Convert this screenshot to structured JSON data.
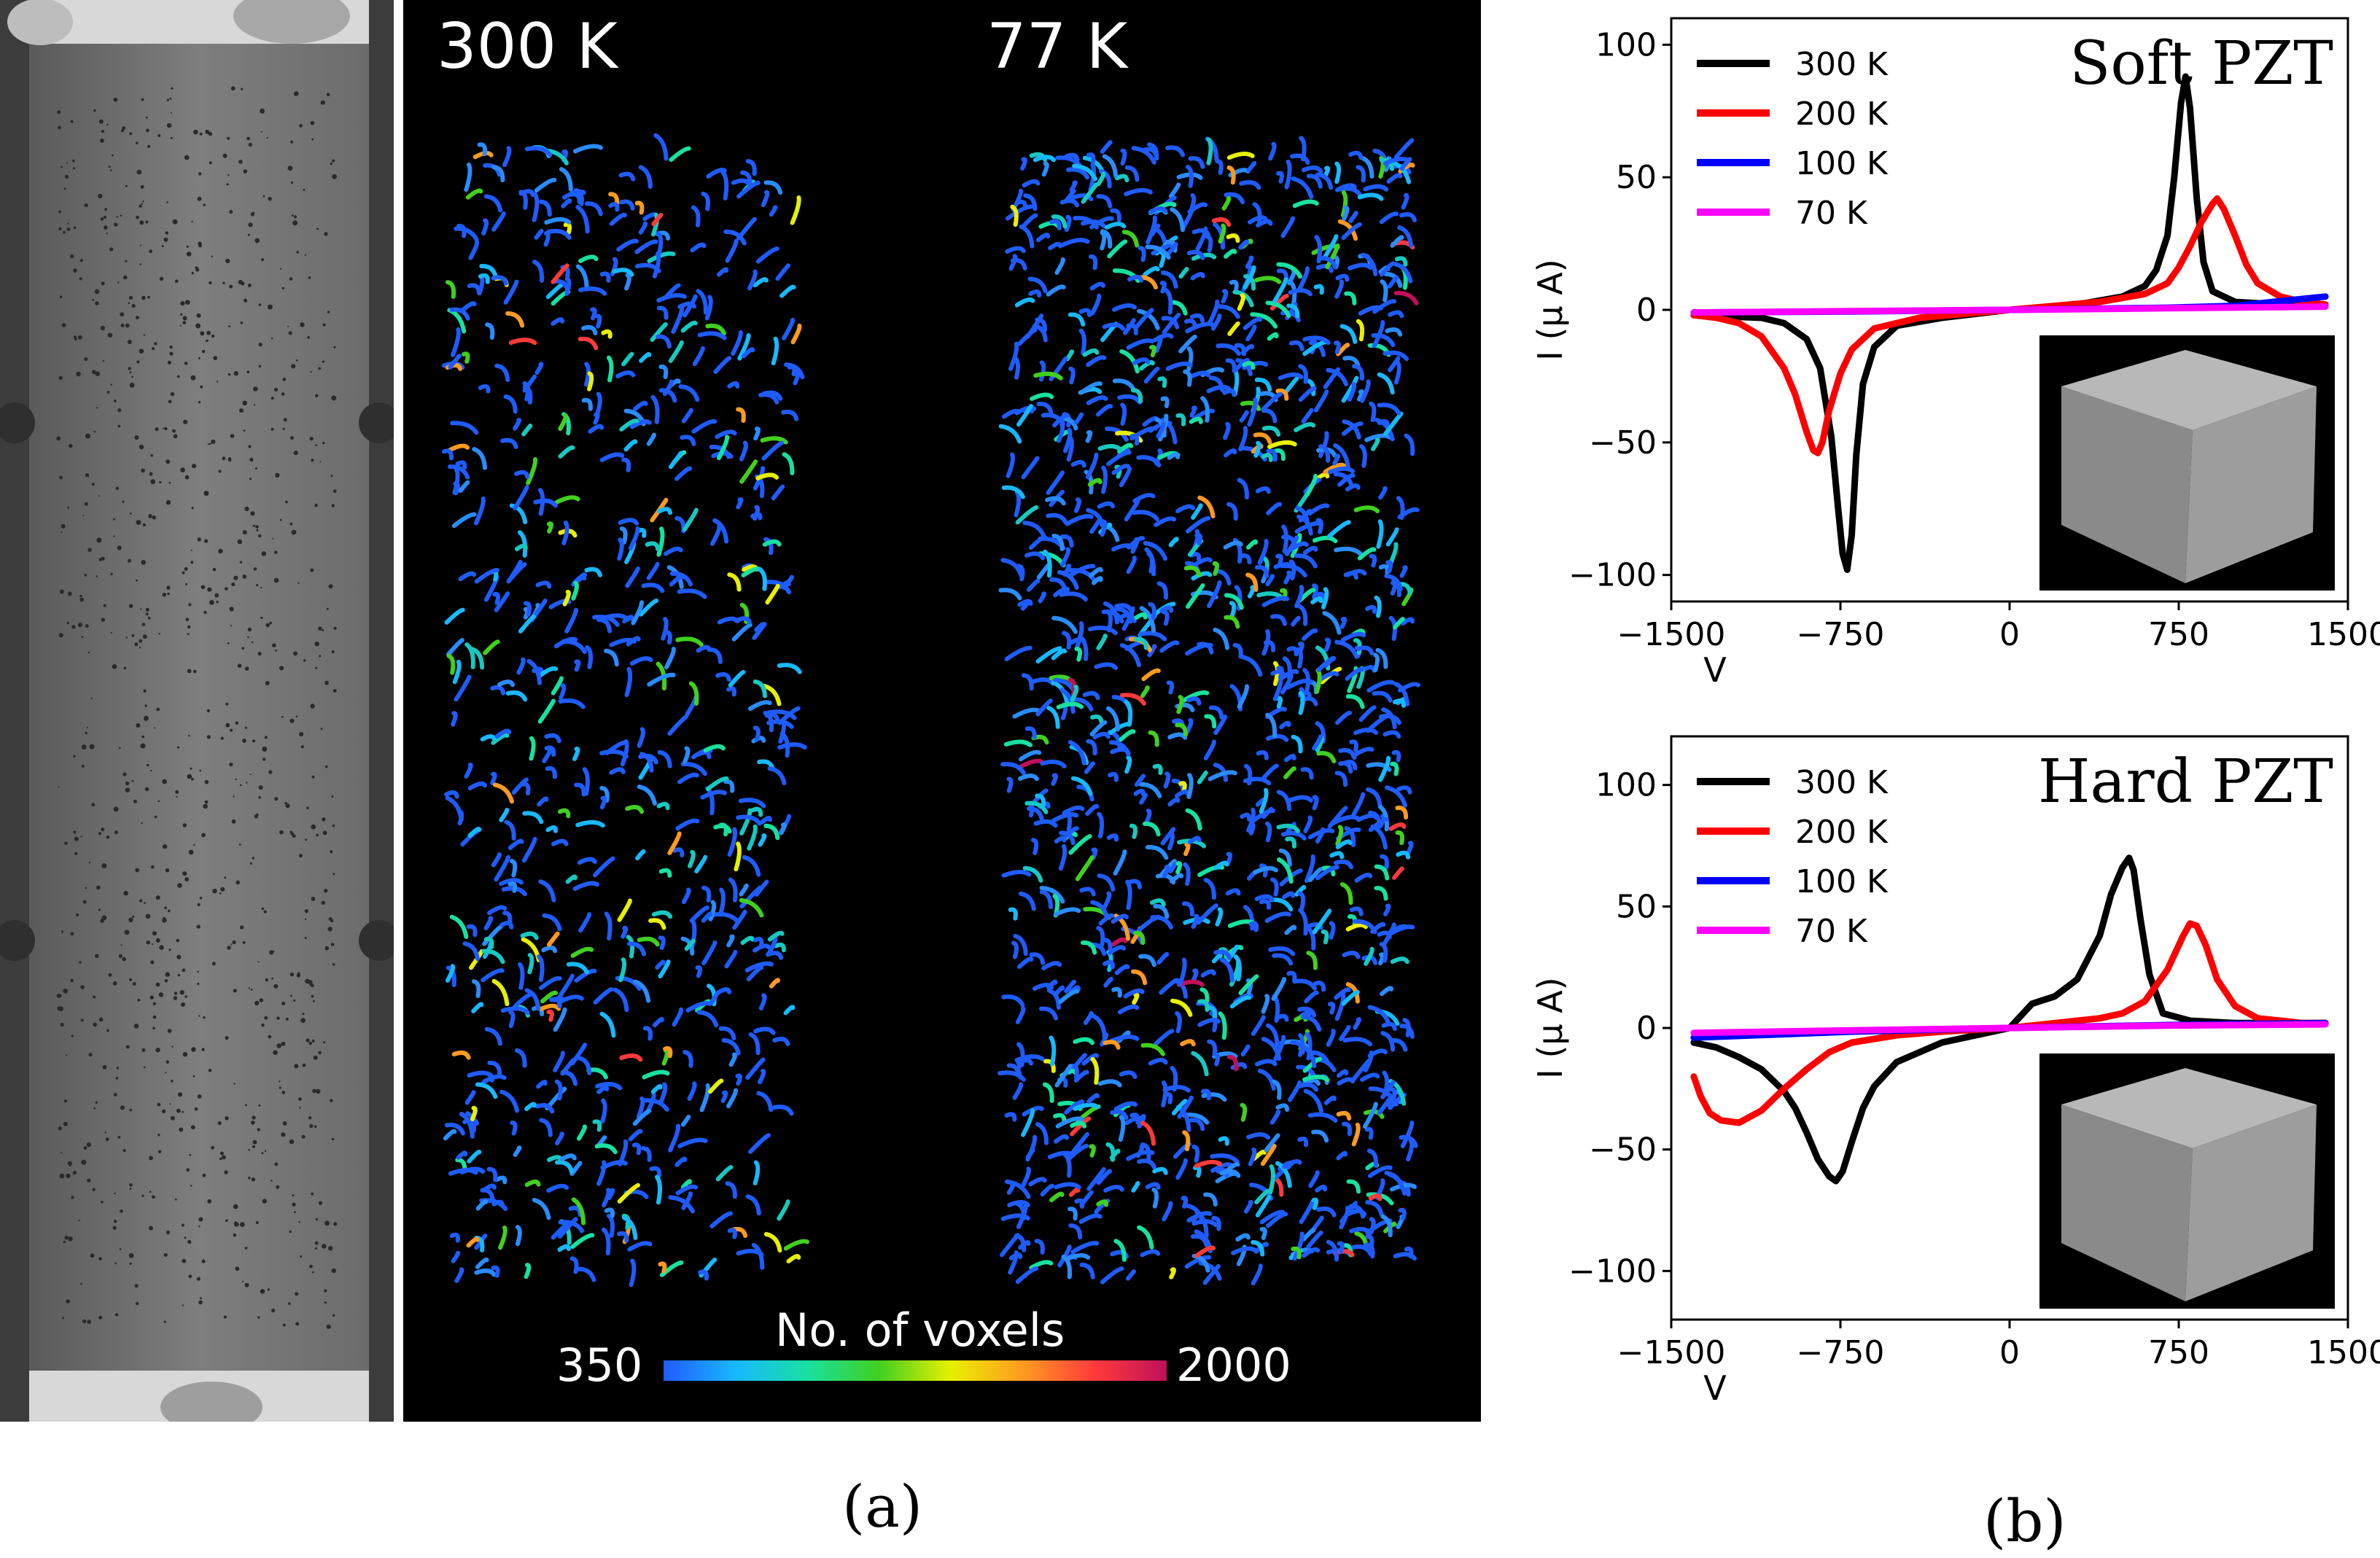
{
  "panel_a": {
    "temp_left": "300 K",
    "temp_right": "77 K",
    "colorbar": {
      "min_label": "350",
      "max_label": "2000",
      "title": "No. of voxels"
    },
    "caption": "(a)"
  },
  "panel_b": {
    "caption": "(b)"
  },
  "chart_data": [
    {
      "type": "line",
      "title": "Soft PZT",
      "xlabel": "V",
      "ylabel": "I (μ A)",
      "xlim": [
        -1500,
        1500
      ],
      "ylim": [
        -110,
        110
      ],
      "xticks": [
        "−1500",
        "−750",
        "0",
        "750",
        "1500"
      ],
      "yticks": [
        "100",
        "50",
        "0",
        "−50",
        "−100"
      ],
      "legend": "top-left",
      "series": [
        {
          "name": "300 K",
          "color": "#000000",
          "x": [
            -1400,
            -1100,
            -1000,
            -900,
            -840,
            -790,
            -760,
            -740,
            -720,
            -700,
            -680,
            -650,
            -600,
            -500,
            -300,
            0,
            300,
            500,
            600,
            650,
            700,
            730,
            760,
            780,
            800,
            830,
            860,
            900,
            1000,
            1200,
            1400
          ],
          "y": [
            -2,
            -3,
            -5,
            -11,
            -22,
            -48,
            -75,
            -92,
            -98,
            -85,
            -55,
            -28,
            -14,
            -6,
            -3,
            0,
            2,
            5,
            9,
            15,
            28,
            50,
            78,
            88,
            76,
            42,
            18,
            7,
            3,
            2,
            2
          ]
        },
        {
          "name": "200 K",
          "color": "#ff0000",
          "x": [
            -1400,
            -1300,
            -1200,
            -1100,
            -1000,
            -950,
            -900,
            -870,
            -850,
            -830,
            -800,
            -750,
            -700,
            -600,
            -400,
            0,
            400,
            600,
            700,
            750,
            800,
            850,
            900,
            920,
            950,
            1000,
            1050,
            1100,
            1200,
            1300,
            1400
          ],
          "y": [
            -2,
            -3,
            -5,
            -10,
            -22,
            -32,
            -46,
            -53,
            -54,
            -50,
            -38,
            -24,
            -15,
            -7,
            -3,
            0,
            3,
            6,
            10,
            16,
            24,
            33,
            40,
            42,
            38,
            28,
            17,
            10,
            5,
            3,
            2
          ]
        },
        {
          "name": "100 K",
          "color": "#0000ff",
          "x": [
            -1400,
            -700,
            0,
            700,
            1000,
            1400
          ],
          "y": [
            -1,
            -0.6,
            0,
            0.8,
            1.5,
            5
          ]
        },
        {
          "name": "70 K",
          "color": "#ff00ff",
          "x": [
            -1400,
            -700,
            0,
            700,
            1400
          ],
          "y": [
            -1,
            -0.5,
            0,
            0.6,
            1.2
          ]
        }
      ]
    },
    {
      "type": "line",
      "title": "Hard PZT",
      "xlabel": "V",
      "ylabel": "I (μ A)",
      "xlim": [
        -1500,
        1500
      ],
      "ylim": [
        -120,
        120
      ],
      "xticks": [
        "−1500",
        "−750",
        "0",
        "750",
        "1500"
      ],
      "yticks": [
        "100",
        "50",
        "0",
        "−50",
        "−100"
      ],
      "legend": "top-left",
      "series": [
        {
          "name": "300 K",
          "color": "#000000",
          "x": [
            -1400,
            -1300,
            -1200,
            -1100,
            -1000,
            -950,
            -900,
            -850,
            -800,
            -770,
            -740,
            -700,
            -650,
            -600,
            -500,
            -300,
            -100,
            0,
            100,
            200,
            300,
            400,
            450,
            500,
            530,
            550,
            580,
            620,
            680,
            800,
            1000,
            1200,
            1400
          ],
          "y": [
            -6,
            -8,
            -12,
            -17,
            -26,
            -33,
            -43,
            -54,
            -61,
            -63,
            -59,
            -47,
            -33,
            -24,
            -14,
            -6,
            -2,
            0,
            10,
            13,
            20,
            38,
            55,
            66,
            70,
            65,
            45,
            22,
            6,
            3,
            2,
            2,
            2
          ]
        },
        {
          "name": "200 K",
          "color": "#ff0000",
          "x": [
            -1400,
            -1370,
            -1330,
            -1280,
            -1200,
            -1100,
            -1000,
            -900,
            -800,
            -700,
            -500,
            -300,
            0,
            200,
            400,
            500,
            600,
            700,
            770,
            800,
            830,
            870,
            920,
            1000,
            1100,
            1200,
            1300,
            1400
          ],
          "y": [
            -20,
            -28,
            -35,
            -38,
            -39,
            -34,
            -25,
            -17,
            -10,
            -6,
            -3,
            -1.5,
            0,
            2,
            4,
            6,
            11,
            24,
            38,
            43,
            42,
            34,
            20,
            9,
            4,
            3,
            2,
            2
          ]
        },
        {
          "name": "100 K",
          "color": "#0000ff",
          "x": [
            -1400,
            -700,
            0,
            700,
            1400
          ],
          "y": [
            -4,
            -1.5,
            0,
            1.2,
            2
          ]
        },
        {
          "name": "70 K",
          "color": "#ff00ff",
          "x": [
            -1400,
            -700,
            0,
            700,
            1400
          ],
          "y": [
            -2,
            -1,
            0,
            1,
            1.5
          ]
        }
      ]
    }
  ]
}
